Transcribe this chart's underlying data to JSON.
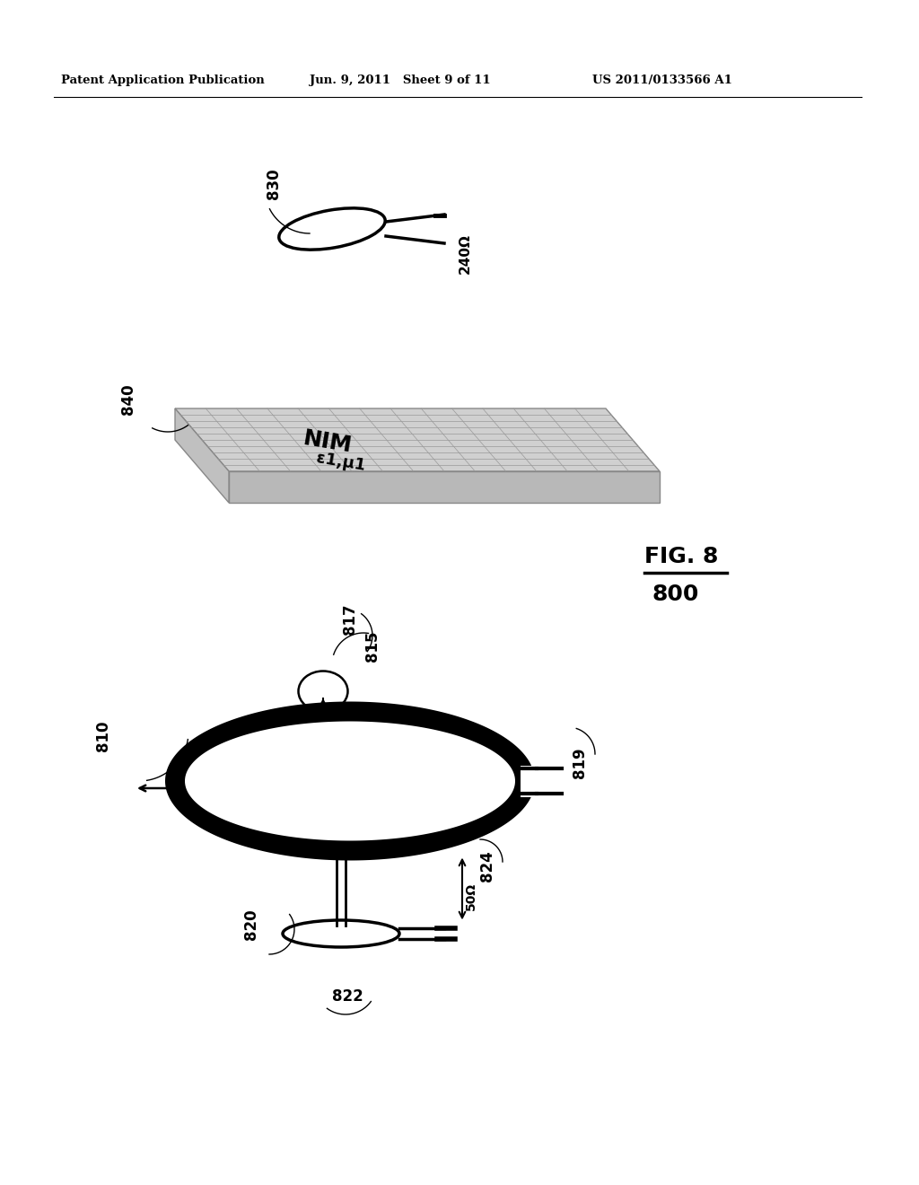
{
  "background_color": "#ffffff",
  "header_left": "Patent Application Publication",
  "header_mid": "Jun. 9, 2011   Sheet 9 of 11",
  "header_right": "US 2011/0133566 A1",
  "fig_label": "FIG. 8",
  "fig_number": "800",
  "label_830": "830",
  "label_240": "240Ω",
  "label_840": "840",
  "nim_text": "NIM",
  "nim_params": "ε1,μ1",
  "label_810": "810",
  "label_815": "815",
  "label_817": "817",
  "label_819": "819",
  "label_820": "820",
  "label_822": "822",
  "label_824": "824",
  "label_50": "50Ω"
}
